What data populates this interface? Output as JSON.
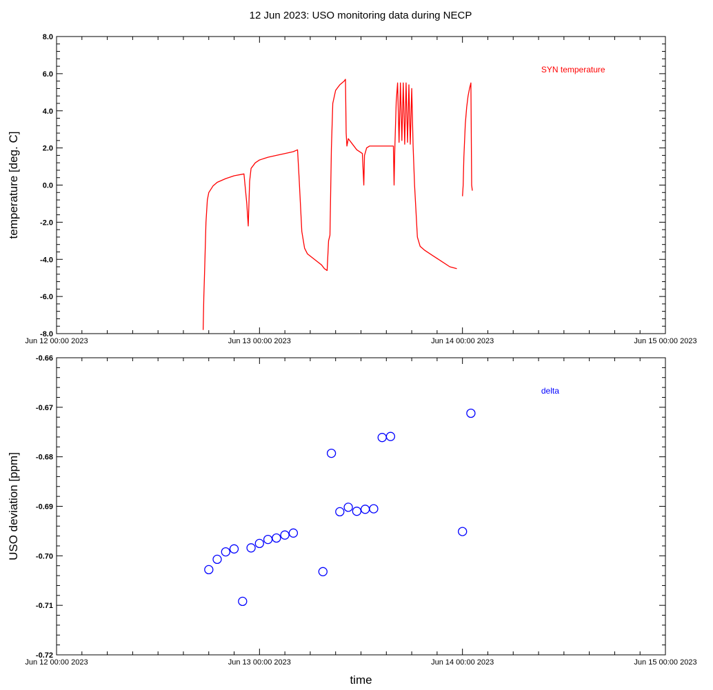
{
  "figure": {
    "title": "12 Jun 2023: USO monitoring data during NECP"
  },
  "chart_data": [
    {
      "type": "line",
      "ylabel": "temperature [deg. C]",
      "xlabel": "",
      "xlim": [
        "2023-06-12 00:00",
        "2023-06-15 00:00"
      ],
      "ylim": [
        -8.0,
        8.0
      ],
      "x_ticks": [
        "Jun 12 00:00 2023",
        "Jun 13 00:00 2023",
        "Jun 14 00:00 2023",
        "Jun 15 00:00 2023"
      ],
      "y_ticks": [
        "-8.0",
        "-6.0",
        "-4.0",
        "-2.0",
        "0.0",
        "2.0",
        "4.0",
        "6.0",
        "8.0"
      ],
      "legend": "top-right",
      "series": [
        {
          "name": "SYN temperature",
          "color": "#ff0000",
          "segments": [
            [
              [
                "2023-06-12 17:20",
                -7.8
              ],
              [
                "2023-06-12 17:25",
                -6.0
              ],
              [
                "2023-06-12 17:30",
                -4.8
              ],
              [
                "2023-06-12 17:40",
                -2.0
              ],
              [
                "2023-06-12 17:50",
                -0.8
              ],
              [
                "2023-06-12 18:00",
                -0.4
              ],
              [
                "2023-06-12 18:30",
                -0.05
              ],
              [
                "2023-06-12 19:00",
                0.15
              ],
              [
                "2023-06-12 20:00",
                0.35
              ],
              [
                "2023-06-12 21:00",
                0.5
              ],
              [
                "2023-06-12 22:10",
                0.6
              ],
              [
                "2023-06-12 22:30",
                -1.0
              ],
              [
                "2023-06-12 22:40",
                -2.2
              ],
              [
                "2023-06-12 22:50",
                0.2
              ],
              [
                "2023-06-12 23:00",
                0.9
              ],
              [
                "2023-06-12 23:30",
                1.2
              ],
              [
                "2023-06-13 00:00",
                1.35
              ],
              [
                "2023-06-13 01:00",
                1.5
              ],
              [
                "2023-06-13 02:00",
                1.6
              ],
              [
                "2023-06-13 03:00",
                1.7
              ],
              [
                "2023-06-13 04:00",
                1.8
              ],
              [
                "2023-06-13 04:30",
                1.9
              ],
              [
                "2023-06-13 04:40",
                0.5
              ],
              [
                "2023-06-13 05:00",
                -2.5
              ],
              [
                "2023-06-13 05:20",
                -3.4
              ],
              [
                "2023-06-13 05:40",
                -3.7
              ],
              [
                "2023-06-13 06:30",
                -4.0
              ],
              [
                "2023-06-13 07:20",
                -4.3
              ],
              [
                "2023-06-13 07:40",
                -4.5
              ],
              [
                "2023-06-13 08:00",
                -4.6
              ],
              [
                "2023-06-13 08:10",
                -3.0
              ],
              [
                "2023-06-13 08:20",
                -2.7
              ],
              [
                "2023-06-13 08:30",
                2.0
              ],
              [
                "2023-06-13 08:40",
                4.4
              ],
              [
                "2023-06-13 09:00",
                5.1
              ],
              [
                "2023-06-13 09:30",
                5.4
              ],
              [
                "2023-06-13 10:00",
                5.6
              ],
              [
                "2023-06-13 10:10",
                5.7
              ],
              [
                "2023-06-13 10:15",
                2.8
              ],
              [
                "2023-06-13 10:20",
                2.1
              ],
              [
                "2023-06-13 10:30",
                2.5
              ],
              [
                "2023-06-13 11:00",
                2.2
              ],
              [
                "2023-06-13 11:30",
                1.9
              ],
              [
                "2023-06-13 12:10",
                1.7
              ],
              [
                "2023-06-13 12:20",
                0.0
              ],
              [
                "2023-06-13 12:25",
                1.6
              ],
              [
                "2023-06-13 12:40",
                2.0
              ],
              [
                "2023-06-13 13:00",
                2.1
              ],
              [
                "2023-06-13 15:50",
                2.1
              ],
              [
                "2023-06-13 15:55",
                0.0
              ],
              [
                "2023-06-13 16:00",
                2.0
              ],
              [
                "2023-06-13 16:10",
                4.5
              ],
              [
                "2023-06-13 16:20",
                5.5
              ],
              [
                "2023-06-13 16:30",
                2.3
              ],
              [
                "2023-06-13 16:40",
                5.5
              ],
              [
                "2023-06-13 16:50",
                2.4
              ],
              [
                "2023-06-13 17:00",
                5.5
              ],
              [
                "2023-06-13 17:10",
                2.2
              ],
              [
                "2023-06-13 17:20",
                5.5
              ],
              [
                "2023-06-13 17:30",
                2.3
              ],
              [
                "2023-06-13 17:40",
                5.4
              ],
              [
                "2023-06-13 17:50",
                2.2
              ],
              [
                "2023-06-13 18:00",
                5.2
              ],
              [
                "2023-06-13 18:10",
                2.1
              ],
              [
                "2023-06-13 18:20",
                0.0
              ],
              [
                "2023-06-13 18:40",
                -2.8
              ],
              [
                "2023-06-13 19:00",
                -3.3
              ],
              [
                "2023-06-13 19:30",
                -3.5
              ],
              [
                "2023-06-13 20:30",
                -3.8
              ],
              [
                "2023-06-13 21:30",
                -4.1
              ],
              [
                "2023-06-13 22:30",
                -4.4
              ],
              [
                "2023-06-13 23:20",
                -4.5
              ]
            ],
            [
              [
                "2023-06-14 00:00",
                -0.6
              ],
              [
                "2023-06-14 00:05",
                0.0
              ],
              [
                "2023-06-14 00:10",
                1.5
              ],
              [
                "2023-06-14 00:20",
                3.3
              ],
              [
                "2023-06-14 00:30",
                4.2
              ],
              [
                "2023-06-14 00:40",
                4.8
              ],
              [
                "2023-06-14 00:50",
                5.2
              ],
              [
                "2023-06-14 01:00",
                5.5
              ],
              [
                "2023-06-14 01:05",
                0.0
              ],
              [
                "2023-06-14 01:10",
                -0.3
              ]
            ]
          ]
        }
      ]
    },
    {
      "type": "scatter",
      "ylabel": "USO deviation [ppm]",
      "xlabel": "time",
      "xlim": [
        "2023-06-12 00:00",
        "2023-06-15 00:00"
      ],
      "ylim": [
        -0.72,
        -0.66
      ],
      "x_ticks": [
        "Jun 12 00:00 2023",
        "Jun 13 00:00 2023",
        "Jun 14 00:00 2023",
        "Jun 15 00:00 2023"
      ],
      "y_ticks": [
        "-0.72",
        "-0.71",
        "-0.70",
        "-0.69",
        "-0.68",
        "-0.67",
        "-0.66"
      ],
      "legend": "top-right",
      "series": [
        {
          "name": "delta",
          "color": "#0000ff",
          "points": [
            [
              "2023-06-12 18:00",
              -0.7028
            ],
            [
              "2023-06-12 19:00",
              -0.7007
            ],
            [
              "2023-06-12 20:00",
              -0.6992
            ],
            [
              "2023-06-12 21:00",
              -0.6986
            ],
            [
              "2023-06-12 22:00",
              -0.7092
            ],
            [
              "2023-06-12 23:00",
              -0.6984
            ],
            [
              "2023-06-13 00:00",
              -0.6975
            ],
            [
              "2023-06-13 01:00",
              -0.6967
            ],
            [
              "2023-06-13 02:00",
              -0.6964
            ],
            [
              "2023-06-13 03:00",
              -0.6958
            ],
            [
              "2023-06-13 04:00",
              -0.6954
            ],
            [
              "2023-06-13 07:30",
              -0.7032
            ],
            [
              "2023-06-13 08:30",
              -0.6793
            ],
            [
              "2023-06-13 09:30",
              -0.6911
            ],
            [
              "2023-06-13 10:30",
              -0.6902
            ],
            [
              "2023-06-13 11:30",
              -0.691
            ],
            [
              "2023-06-13 12:30",
              -0.6906
            ],
            [
              "2023-06-13 13:30",
              -0.6905
            ],
            [
              "2023-06-13 14:30",
              -0.6761
            ],
            [
              "2023-06-13 15:30",
              -0.6759
            ],
            [
              "2023-06-14 00:00",
              -0.6951
            ],
            [
              "2023-06-14 01:00",
              -0.6712
            ]
          ]
        }
      ]
    }
  ]
}
